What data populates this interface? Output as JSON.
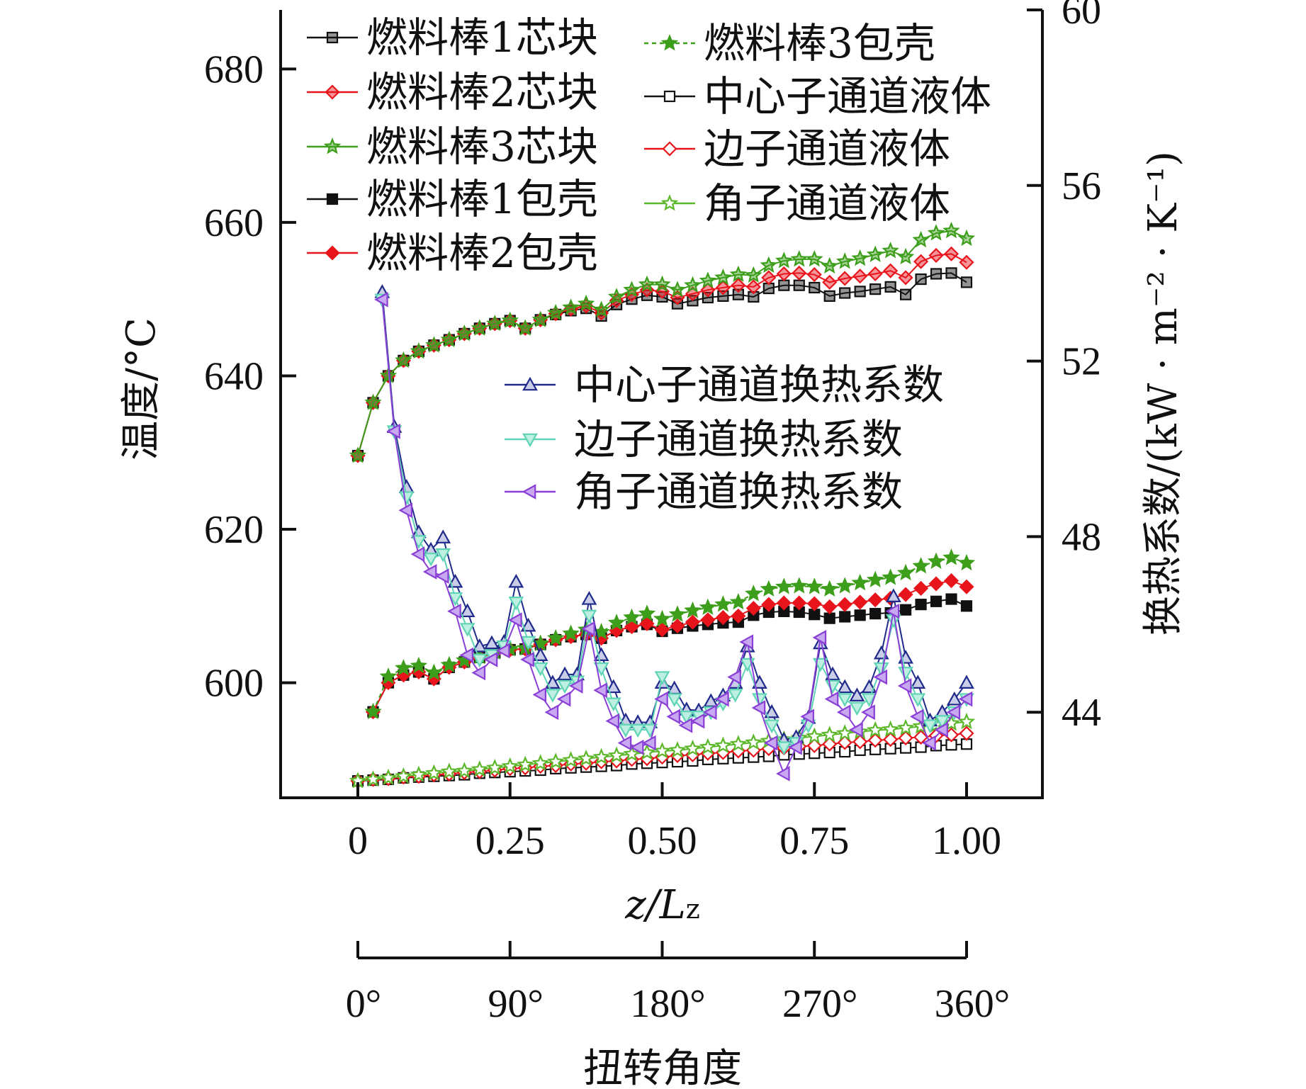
{
  "chart_data": {
    "type": "line",
    "xlabel": "z/Lz",
    "xlabel_main": "z/L",
    "xlabel_sub": "z",
    "ylabel_left": "温度/°C",
    "ylabel_right": "换热系数/(kW · m⁻² · K⁻¹)",
    "xlim": [
      0,
      1
    ],
    "ylim_left": [
      585,
      687.7
    ],
    "ylim_right": [
      42.05,
      60
    ],
    "x_ticks": [
      "0",
      "0.25",
      "0.50",
      "0.75",
      "1.00"
    ],
    "x_tick_values": [
      0,
      0.25,
      0.5,
      0.75,
      1.0
    ],
    "left_ticks": [
      "680",
      "660",
      "640",
      "620",
      "600"
    ],
    "left_tick_values": [
      680,
      660,
      640,
      620,
      600
    ],
    "right_ticks": [
      "60",
      "56",
      "52",
      "48",
      "44"
    ],
    "right_tick_values": [
      60,
      56,
      52,
      48,
      44
    ],
    "secondary_x": {
      "label": "扭转角度",
      "ticks": [
        "0°",
        "90°",
        "180°",
        "270°",
        "360°"
      ],
      "tick_values": [
        0,
        0.25,
        0.5,
        0.75,
        1.0
      ]
    },
    "temp_x": [
      0,
      0.025,
      0.05,
      0.075,
      0.1,
      0.125,
      0.15,
      0.175,
      0.2,
      0.225,
      0.25,
      0.275,
      0.3,
      0.325,
      0.35,
      0.375,
      0.4,
      0.425,
      0.45,
      0.475,
      0.5,
      0.525,
      0.55,
      0.575,
      0.6,
      0.625,
      0.65,
      0.675,
      0.7,
      0.725,
      0.75,
      0.775,
      0.8,
      0.825,
      0.85,
      0.875,
      0.9,
      0.925,
      0.95,
      0.975,
      1.0
    ],
    "htc_x": [
      0.04,
      0.06,
      0.08,
      0.1,
      0.12,
      0.14,
      0.16,
      0.18,
      0.2,
      0.22,
      0.24,
      0.26,
      0.28,
      0.3,
      0.32,
      0.34,
      0.36,
      0.38,
      0.4,
      0.42,
      0.44,
      0.46,
      0.48,
      0.5,
      0.52,
      0.54,
      0.56,
      0.58,
      0.6,
      0.62,
      0.64,
      0.66,
      0.68,
      0.7,
      0.72,
      0.74,
      0.76,
      0.78,
      0.8,
      0.82,
      0.84,
      0.86,
      0.88,
      0.9,
      0.92,
      0.94,
      0.96,
      0.98,
      1.0
    ],
    "series": [
      {
        "name": "燃料棒1芯块",
        "axis": "left",
        "xkey": "temp_x",
        "color": "#111111",
        "marker": "square-half",
        "dash": "",
        "values": [
          629.6,
          636.5,
          640,
          642,
          643.2,
          644,
          644.7,
          645.5,
          646.2,
          646.8,
          647.2,
          646.2,
          647.3,
          648,
          648.5,
          648.8,
          647.8,
          649.3,
          650,
          650.5,
          650.3,
          649.4,
          649.8,
          650.2,
          650.4,
          650.6,
          650.3,
          651.4,
          651.8,
          651.8,
          651.5,
          650.4,
          650.8,
          651,
          651.3,
          651.6,
          650.6,
          652.6,
          653.3,
          653.4,
          652.2
        ]
      },
      {
        "name": "燃料棒2芯块",
        "axis": "left",
        "xkey": "temp_x",
        "color": "#e8141c",
        "marker": "diamond-half",
        "dash": "",
        "values": [
          629.6,
          636.5,
          640,
          642,
          643.2,
          644,
          644.7,
          645.5,
          646.2,
          646.8,
          647.2,
          646.2,
          647.3,
          648.1,
          648.7,
          649.1,
          648.2,
          649.8,
          650.6,
          651.2,
          651.0,
          650.2,
          650.7,
          651.2,
          651.5,
          651.8,
          651.6,
          652.8,
          653.3,
          653.4,
          653.2,
          652.2,
          652.7,
          653.0,
          653.3,
          653.7,
          652.8,
          654.9,
          655.7,
          655.9,
          654.8
        ]
      },
      {
        "name": "燃料棒3芯块",
        "axis": "left",
        "xkey": "temp_x",
        "color": "#3c9e1a",
        "marker": "star-half",
        "dash": "",
        "values": [
          629.6,
          636.5,
          640,
          642,
          643.2,
          644,
          644.7,
          645.5,
          646.2,
          646.8,
          647.2,
          646.2,
          647.3,
          648.2,
          648.9,
          649.4,
          648.6,
          650.3,
          651.2,
          651.9,
          651.9,
          651.2,
          651.8,
          652.4,
          652.8,
          653.2,
          653.1,
          654.4,
          655.0,
          655.2,
          655.2,
          654.3,
          654.9,
          655.3,
          655.8,
          656.3,
          655.5,
          657.7,
          658.6,
          658.9,
          657.9
        ]
      },
      {
        "name": "燃料棒1包壳",
        "axis": "left",
        "xkey": "temp_x",
        "start": 1,
        "color": "#111111",
        "marker": "square-filled",
        "dash": "",
        "values": [
          null,
          596.2,
          600,
          601,
          601.4,
          600.5,
          602,
          602.7,
          603.3,
          603.9,
          604.3,
          604.4,
          605,
          605.6,
          606,
          606.3,
          605.8,
          606.8,
          607.3,
          607.6,
          606.7,
          607.1,
          607.4,
          607.6,
          607.8,
          607.9,
          608.8,
          609.2,
          609.3,
          609.2,
          608.9,
          608.4,
          608.6,
          608.8,
          609.0,
          609.1,
          609.5,
          610.2,
          610.6,
          610.9,
          610.0
        ]
      },
      {
        "name": "燃料棒2包壳",
        "axis": "left",
        "xkey": "temp_x",
        "color": "#e8141c",
        "marker": "diamond-filled",
        "dash": "",
        "values": [
          null,
          596.2,
          600,
          601,
          601.4,
          600.5,
          602,
          602.7,
          603.3,
          603.9,
          604.3,
          604.4,
          605,
          605.6,
          606,
          606.3,
          605.8,
          606.8,
          607.3,
          607.7,
          606.9,
          607.4,
          607.9,
          608.2,
          608.5,
          608.7,
          609.7,
          610.2,
          610.4,
          610.4,
          610.3,
          609.9,
          610.2,
          610.5,
          610.8,
          611.0,
          611.5,
          612.3,
          612.9,
          613.3,
          612.5
        ]
      },
      {
        "name": "燃料棒3包壳",
        "axis": "left",
        "xkey": "temp_x",
        "color": "#3c9e1a",
        "marker": "star-filled",
        "dash": "6,5",
        "values": [
          null,
          596.2,
          600.8,
          601.9,
          602.2,
          601.3,
          602.3,
          602.9,
          603.4,
          604.0,
          604.4,
          604.5,
          605.1,
          605.8,
          606.4,
          606.9,
          606.6,
          607.8,
          608.5,
          609.0,
          608.3,
          608.9,
          609.4,
          609.8,
          610.2,
          610.5,
          611.6,
          612.2,
          612.5,
          612.6,
          612.5,
          612.2,
          612.6,
          613.0,
          613.4,
          613.7,
          614.3,
          615.2,
          615.8,
          616.3,
          615.6
        ]
      },
      {
        "name": "中心子通道液体",
        "axis": "left",
        "xkey": "temp_x",
        "color": "#111111",
        "marker": "square-open",
        "dash": "",
        "values": [
          587.2,
          587.3,
          587.4,
          587.6,
          587.7,
          587.8,
          587.9,
          588.0,
          588.2,
          588.3,
          588.4,
          588.5,
          588.6,
          588.8,
          588.9,
          589.0,
          589.1,
          589.2,
          589.4,
          589.5,
          589.6,
          589.7,
          589.8,
          590.0,
          590.1,
          590.2,
          590.3,
          590.4,
          590.6,
          590.7,
          590.8,
          590.9,
          591.0,
          591.2,
          591.3,
          591.4,
          591.5,
          591.6,
          591.8,
          591.9,
          592.0
        ]
      },
      {
        "name": "边子通道液体",
        "axis": "left",
        "xkey": "temp_x",
        "color": "#e8141c",
        "marker": "diamond-open",
        "dash": "",
        "values": [
          587.2,
          587.4,
          587.5,
          587.7,
          587.8,
          588.0,
          588.1,
          588.3,
          588.4,
          588.6,
          588.8,
          588.9,
          589.1,
          589.2,
          589.4,
          589.5,
          589.7,
          589.8,
          590.0,
          590.1,
          590.3,
          590.5,
          590.6,
          590.8,
          590.9,
          591.1,
          591.2,
          591.4,
          591.5,
          591.7,
          591.8,
          592.0,
          592.2,
          592.3,
          592.5,
          592.6,
          592.8,
          592.9,
          593.1,
          593.2,
          593.4
        ]
      },
      {
        "name": "角子通道液体",
        "axis": "left",
        "xkey": "temp_x",
        "color": "#5cb82a",
        "marker": "star-open",
        "dash": "",
        "values": [
          587.2,
          587.4,
          587.6,
          587.8,
          588.0,
          588.2,
          588.4,
          588.5,
          588.7,
          588.9,
          589.1,
          589.3,
          589.5,
          589.7,
          589.9,
          590.1,
          590.3,
          590.5,
          590.7,
          590.9,
          591.1,
          591.2,
          591.4,
          591.6,
          591.8,
          592.0,
          592.2,
          592.4,
          592.6,
          592.8,
          593.0,
          593.2,
          593.4,
          593.6,
          593.8,
          593.9,
          594.1,
          594.3,
          594.5,
          594.7,
          594.9
        ]
      },
      {
        "name": "中心子通道换热系数",
        "axis": "right",
        "xkey": "htc_x",
        "color": "#1f2a8a",
        "marker": "tri-up",
        "dash": "",
        "values": [
          53.57,
          50.5,
          49.13,
          48.1,
          47.7,
          47.98,
          46.97,
          46.3,
          45.5,
          45.57,
          45.6,
          46.97,
          45.97,
          45.3,
          44.67,
          44.86,
          44.86,
          46.58,
          45.3,
          44.57,
          43.81,
          43.77,
          43.77,
          44.67,
          44.54,
          44.06,
          44.04,
          44.25,
          44.38,
          44.67,
          45.5,
          44.67,
          44.0,
          43.37,
          43.43,
          43.87,
          45.57,
          44.86,
          44.57,
          44.38,
          44.57,
          45.34,
          46.64,
          45.24,
          44.67,
          43.81,
          44.0,
          44.29,
          44.67
        ]
      },
      {
        "name": "边子通道换热系数",
        "axis": "right",
        "xkey": "htc_x",
        "color": "#5fd3b5",
        "marker": "tri-down",
        "dash": "",
        "values": [
          53.4,
          50.4,
          48.9,
          47.9,
          47.5,
          47.6,
          46.6,
          45.9,
          45.2,
          45.3,
          45.5,
          46.5,
          45.6,
          45.0,
          44.4,
          44.6,
          44.7,
          46.2,
          45.0,
          44.2,
          43.6,
          43.6,
          43.6,
          44.8,
          44.3,
          43.9,
          43.9,
          44.0,
          44.2,
          44.4,
          45.1,
          44.3,
          43.7,
          43.2,
          43.3,
          43.7,
          45.1,
          44.6,
          44.3,
          44.1,
          44.3,
          45.0,
          46.1,
          44.9,
          44.3,
          43.7,
          43.8,
          44.0,
          44.3
        ]
      },
      {
        "name": "角子通道换热系数",
        "axis": "right",
        "xkey": "htc_x",
        "color": "#8a3fd6",
        "marker": "tri-left",
        "dash": "",
        "values": [
          53.4,
          50.4,
          48.6,
          47.6,
          47.2,
          47.1,
          46.3,
          45.3,
          44.9,
          45.2,
          45.4,
          46.1,
          45.2,
          44.4,
          44.0,
          44.3,
          44.6,
          45.9,
          44.5,
          43.8,
          43.3,
          43.2,
          43.3,
          44.3,
          43.9,
          43.7,
          43.8,
          44.0,
          44.3,
          44.8,
          45.6,
          44.1,
          43.3,
          42.6,
          43.2,
          43.9,
          45.7,
          44.3,
          44.0,
          43.6,
          44.0,
          44.8,
          46.3,
          44.6,
          43.9,
          43.3,
          43.6,
          44.0,
          44.3
        ]
      }
    ]
  }
}
